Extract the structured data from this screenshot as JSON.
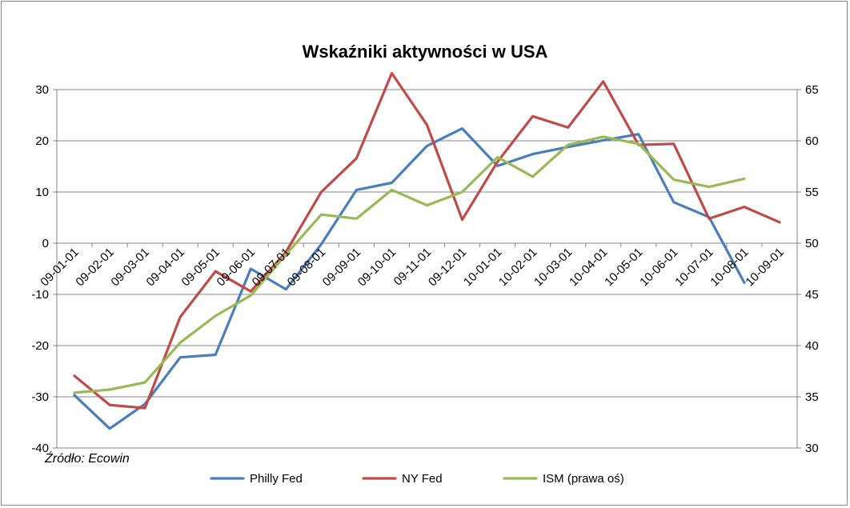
{
  "chart_data": {
    "type": "line",
    "title": "Wskaźniki aktywności w USA",
    "source_note": "Źródło: Ecowin",
    "categories": [
      "09-01-01",
      "09-02-01",
      "09-03-01",
      "09-04-01",
      "09-05-01",
      "09-06-01",
      "09-07-01",
      "09-08-01",
      "09-09-01",
      "09-10-01",
      "09-11-01",
      "09-12-01",
      "10-01-01",
      "10-02-01",
      "10-03-01",
      "10-04-01",
      "10-05-01",
      "10-06-01",
      "10-07-01",
      "10-08-01",
      "10-09-01"
    ],
    "y_left": {
      "min": -40,
      "max": 30,
      "ticks": [
        -40,
        -30,
        -20,
        -10,
        0,
        10,
        20,
        30
      ]
    },
    "y_right": {
      "min": 30,
      "max": 65,
      "ticks": [
        30,
        35,
        40,
        45,
        50,
        55,
        60,
        65
      ]
    },
    "grid": "horizontal",
    "legend_position": "bottom",
    "series": [
      {
        "name": "Philly Fed",
        "axis": "left",
        "color": "#4a7ebb",
        "values": [
          -29.7,
          -36.2,
          -31.4,
          -22.3,
          -21.8,
          -5.0,
          -9.0,
          -0.2,
          10.4,
          11.8,
          19.0,
          22.4,
          15.1,
          17.4,
          18.8,
          20.1,
          21.3,
          8.0,
          5.1,
          -7.7,
          null
        ]
      },
      {
        "name": "NY Fed",
        "axis": "left",
        "color": "#be4b48",
        "values": [
          -25.9,
          -31.6,
          -32.2,
          -14.4,
          -5.5,
          -9.4,
          -1.7,
          10.0,
          16.6,
          33.2,
          23.1,
          4.6,
          15.9,
          24.8,
          22.6,
          31.6,
          19.2,
          19.4,
          4.8,
          7.1,
          4.1
        ]
      },
      {
        "name": "ISM (prawa oś)",
        "axis": "right",
        "color": "#98b954",
        "values": [
          35.4,
          35.7,
          36.4,
          40.3,
          42.9,
          44.9,
          48.9,
          52.8,
          52.4,
          55.2,
          53.7,
          55.0,
          58.4,
          56.5,
          59.6,
          60.4,
          59.7,
          56.2,
          55.5,
          56.3,
          null
        ]
      }
    ]
  }
}
